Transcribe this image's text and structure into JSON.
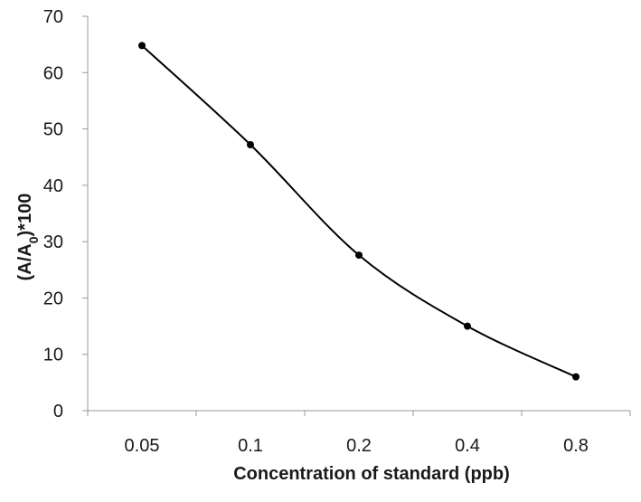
{
  "chart_data": {
    "type": "line",
    "title": "",
    "xlabel": "Concentration of standard (ppb)",
    "ylabel": {
      "prefix": "(A/A",
      "subscript": "0",
      "suffix": ")*100"
    },
    "categories": [
      "0.05",
      "0.1",
      "0.2",
      "0.4",
      "0.8"
    ],
    "series": [
      {
        "values": [
          64.8,
          47.2,
          27.6,
          15.0,
          6.0
        ]
      }
    ],
    "ylim": [
      0,
      70
    ],
    "yticks": [
      "0",
      "10",
      "20",
      "30",
      "40",
      "50",
      "60",
      "70"
    ],
    "grid": false,
    "legend": "none",
    "smooth": true,
    "colors": {
      "line": "#000000",
      "marker": "#000000",
      "axis": "#9a9a9a"
    }
  }
}
